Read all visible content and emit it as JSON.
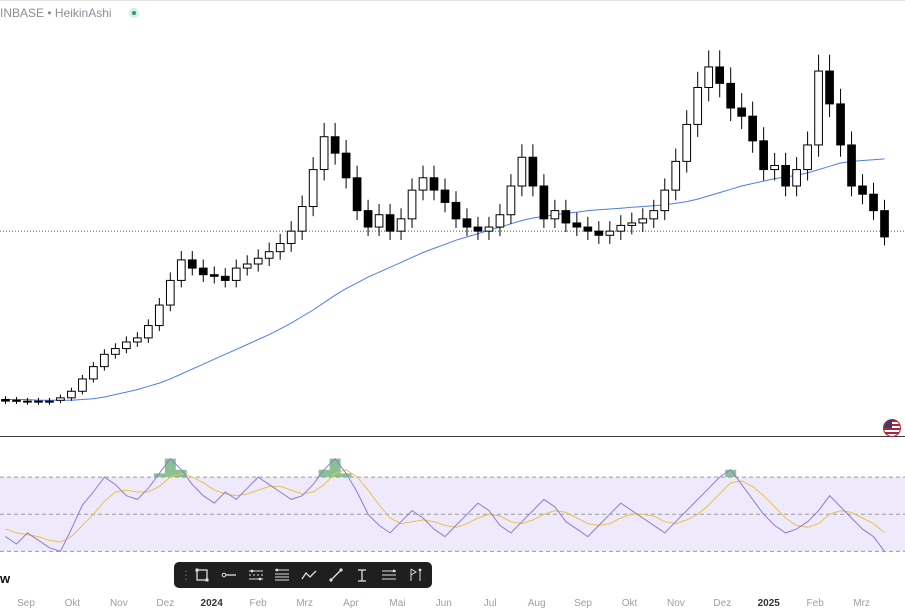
{
  "header": {
    "legend_text": "INBASE • HeikinAshi"
  },
  "colors": {
    "candle": "#000000",
    "moving_average": "#4a7fe8",
    "oscillator": "#8e7bd6",
    "signal": "#e8c24a",
    "band_fill": "#efeafb",
    "overbought_fill": "#6bb27a",
    "price_line": "#555555"
  },
  "chart_data": [
    {
      "type": "candlestick",
      "style": "HeikinAshi",
      "series": [
        {
          "values": [
            1.0,
            0.99,
            0.98,
            0.98,
            0.97,
            0.99,
            1.02,
            1.1,
            1.25,
            1.4,
            1.55,
            1.62,
            1.7,
            1.75,
            1.9,
            2.15,
            2.45,
            2.7,
            2.6,
            2.52,
            2.5,
            2.45,
            2.6,
            2.65,
            2.72,
            2.8,
            2.9,
            3.05,
            3.35,
            3.8,
            4.2,
            4.0,
            3.7,
            3.3,
            3.1,
            3.25,
            3.05,
            3.2,
            3.55,
            3.7,
            3.55,
            3.4,
            3.2,
            3.1,
            3.05,
            3.1,
            3.25,
            3.6,
            3.95,
            3.6,
            3.2,
            3.3,
            3.15,
            3.1,
            3.05,
            3.0,
            3.05,
            3.12,
            3.15,
            3.2,
            3.3,
            3.55,
            3.9,
            4.35,
            4.8,
            5.05,
            4.85,
            4.55,
            4.45,
            4.15,
            3.8,
            3.85,
            3.6,
            3.8,
            4.1,
            5.0,
            4.6,
            4.1,
            3.6,
            3.5,
            3.3
          ]
        },
        {
          "values": [
            0.98,
            0.98,
            0.97,
            0.97,
            0.98,
            1.02,
            1.1,
            1.25,
            1.4,
            1.55,
            1.62,
            1.7,
            1.75,
            1.9,
            2.15,
            2.45,
            2.7,
            2.6,
            2.52,
            2.5,
            2.45,
            2.6,
            2.65,
            2.72,
            2.8,
            2.9,
            3.05,
            3.35,
            3.8,
            4.2,
            4.0,
            3.7,
            3.3,
            3.1,
            3.25,
            3.05,
            3.2,
            3.55,
            3.7,
            3.55,
            3.4,
            3.2,
            3.1,
            3.05,
            3.1,
            3.25,
            3.6,
            3.95,
            3.6,
            3.2,
            3.3,
            3.15,
            3.1,
            3.05,
            3.0,
            3.05,
            3.12,
            3.15,
            3.2,
            3.3,
            3.55,
            3.9,
            4.35,
            4.8,
            5.05,
            4.85,
            4.55,
            4.45,
            4.15,
            3.8,
            3.85,
            3.6,
            3.8,
            4.1,
            5.0,
            4.6,
            4.1,
            3.6,
            3.5,
            3.3,
            2.98
          ]
        }
      ],
      "ma_values": [
        1.0,
        1.0,
        1.0,
        0.99,
        0.99,
        0.99,
        0.99,
        1.0,
        1.01,
        1.03,
        1.06,
        1.09,
        1.12,
        1.16,
        1.2,
        1.25,
        1.31,
        1.37,
        1.43,
        1.49,
        1.55,
        1.61,
        1.67,
        1.73,
        1.79,
        1.86,
        1.93,
        2.01,
        2.09,
        2.18,
        2.27,
        2.35,
        2.42,
        2.49,
        2.55,
        2.61,
        2.67,
        2.73,
        2.79,
        2.84,
        2.89,
        2.94,
        2.98,
        3.02,
        3.06,
        3.1,
        3.14,
        3.18,
        3.21,
        3.23,
        3.25,
        3.27,
        3.28,
        3.3,
        3.31,
        3.32,
        3.33,
        3.34,
        3.35,
        3.36,
        3.37,
        3.39,
        3.41,
        3.44,
        3.48,
        3.52,
        3.56,
        3.6,
        3.63,
        3.66,
        3.69,
        3.71,
        3.73,
        3.76,
        3.8,
        3.84,
        3.88,
        3.9,
        3.91,
        3.92,
        3.93
      ],
      "last_price_line": 3.05,
      "x_labels": [
        "Sep",
        "Okt",
        "Nov",
        "Dez",
        "2024",
        "Feb",
        "Mrz",
        "Apr",
        "Mai",
        "Jun",
        "Jul",
        "Aug",
        "Sep",
        "Okt",
        "Nov",
        "Dez",
        "2025",
        "Feb",
        "Mrz"
      ]
    },
    {
      "type": "line",
      "series": [
        {
          "values": [
            38,
            34,
            40,
            36,
            32,
            30,
            42,
            55,
            62,
            70,
            66,
            60,
            58,
            64,
            72,
            80,
            74,
            66,
            60,
            56,
            62,
            58,
            64,
            70,
            66,
            62,
            58,
            60,
            66,
            74,
            80,
            72,
            62,
            50,
            44,
            40,
            46,
            52,
            48,
            42,
            38,
            44,
            50,
            56,
            52,
            44,
            40,
            46,
            52,
            58,
            54,
            46,
            42,
            38,
            44,
            50,
            56,
            52,
            48,
            44,
            40,
            46,
            52,
            58,
            64,
            70,
            74,
            66,
            58,
            50,
            44,
            40,
            42,
            46,
            52,
            60,
            54,
            48,
            42,
            38,
            30
          ]
        },
        {
          "values": [
            42,
            40,
            39,
            38,
            36,
            35,
            38,
            44,
            50,
            57,
            62,
            63,
            62,
            62,
            65,
            70,
            72,
            70,
            67,
            63,
            61,
            60,
            61,
            63,
            65,
            65,
            63,
            61,
            62,
            66,
            72,
            74,
            70,
            63,
            55,
            48,
            45,
            46,
            47,
            46,
            44,
            43,
            45,
            48,
            50,
            49,
            46,
            45,
            47,
            50,
            52,
            51,
            48,
            45,
            44,
            45,
            48,
            50,
            50,
            49,
            46,
            45,
            47,
            50,
            55,
            61,
            67,
            68,
            65,
            60,
            54,
            48,
            44,
            43,
            45,
            50,
            52,
            51,
            48,
            45,
            40
          ]
        }
      ],
      "bands": [
        30,
        50,
        70
      ],
      "ylim": [
        20,
        90
      ]
    }
  ],
  "axis": {
    "x_labels": [
      "Sep",
      "Okt",
      "Nov",
      "Dez",
      "2024",
      "Feb",
      "Mrz",
      "Apr",
      "Mai",
      "Jun",
      "Jul",
      "Aug",
      "Sep",
      "Okt",
      "Nov",
      "Dez",
      "2025",
      "Feb",
      "Mrz"
    ]
  },
  "oscillator_label": "w",
  "toolbar": {
    "tools": [
      "rectangle-tool-icon",
      "horizontal-ray-icon",
      "parallel-channel-icon",
      "fib-retracement-icon",
      "path-icon",
      "trend-line-icon",
      "text-tool-icon",
      "horizontal-lines-icon",
      "long-position-icon"
    ]
  }
}
